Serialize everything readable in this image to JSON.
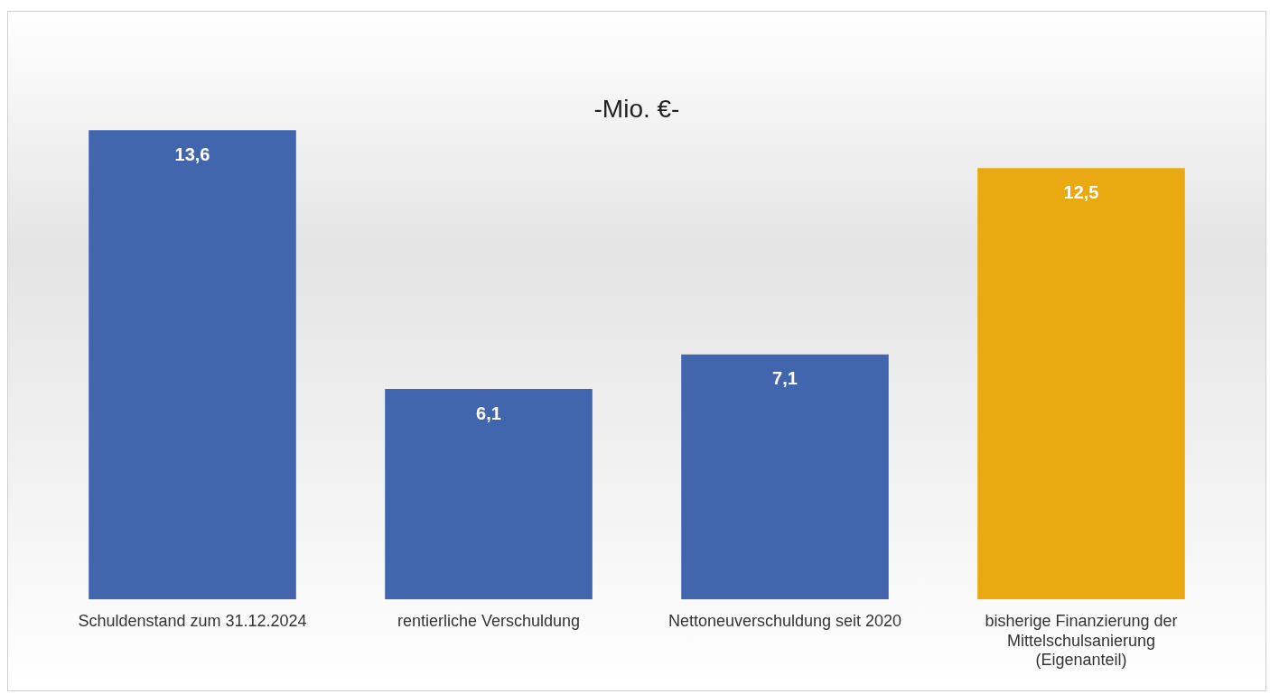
{
  "chart_data": {
    "type": "bar",
    "title": "-Mio. €-",
    "categories": [
      "Schuldenstand zum 31.12.2024",
      "rentierliche Verschuldung",
      "Nettoneuverschuldung seit 2020",
      "bisherige Finanzierung der Mittelschulsanierung (Eigenanteil)"
    ],
    "values": [
      13.6,
      6.1,
      7.1,
      12.5
    ],
    "colors": [
      "#4166ae",
      "#4166ae",
      "#4166ae",
      "#e8aa10"
    ],
    "value_labels": [
      "13,6",
      "6,1",
      "7,1",
      "12,5"
    ],
    "grid": false,
    "legend": false
  }
}
